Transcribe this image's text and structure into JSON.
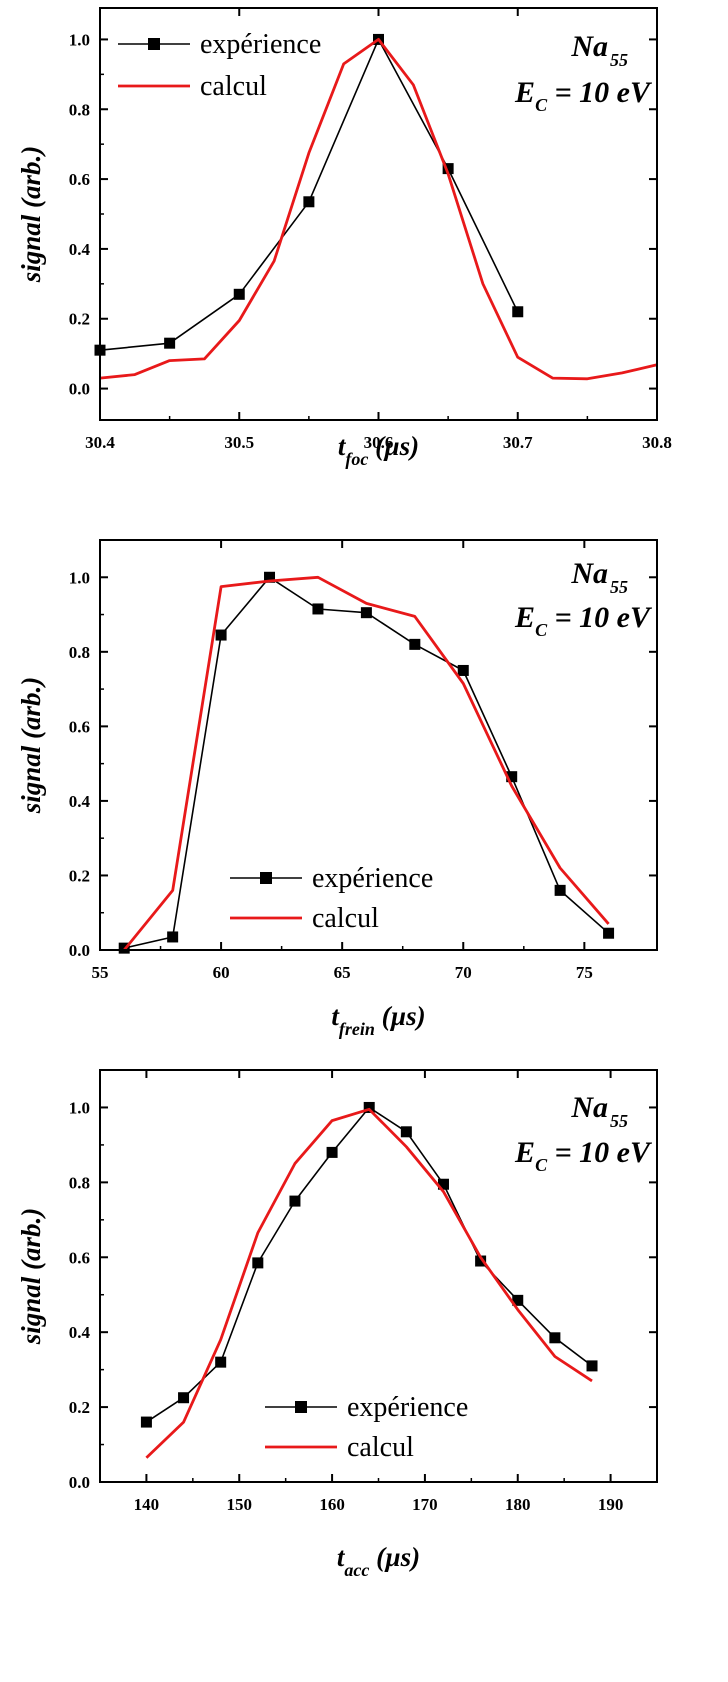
{
  "chart_data": [
    {
      "type": "line",
      "annotation": {
        "line1": "Na",
        "line1_sub": "55",
        "line2": "E",
        "line2_sub": "C",
        "line2_rest": " = 10 eV"
      },
      "ylabel": "signal (arb.)",
      "xlabel": {
        "main": "t",
        "sub": "foc",
        "unit": " (µs)"
      },
      "xlim": [
        30.4,
        30.8
      ],
      "ylim": [
        -0.09,
        1.09
      ],
      "xticks": [
        30.4,
        30.5,
        30.6,
        30.7,
        30.8
      ],
      "xtick_labels": [
        "30.4",
        "30.5",
        "30.6",
        "30.7",
        "30.8"
      ],
      "yticks": [
        0.0,
        0.2,
        0.4,
        0.6,
        0.8,
        1.0
      ],
      "ytick_labels": [
        "0.0",
        "0.2",
        "0.4",
        "0.6",
        "0.8",
        "1.0"
      ],
      "legend": {
        "position": "top-left",
        "entries": [
          "expérience",
          "calcul"
        ]
      },
      "series": [
        {
          "name": "expérience",
          "color": "#000000",
          "marker": "square",
          "x": [
            30.4,
            30.45,
            30.5,
            30.55,
            30.6,
            30.65,
            30.7
          ],
          "y": [
            0.11,
            0.13,
            0.27,
            0.535,
            1.0,
            0.63,
            0.22
          ]
        },
        {
          "name": "calcul",
          "color": "#e8191a",
          "marker": "none",
          "x": [
            30.4,
            30.425,
            30.45,
            30.475,
            30.5,
            30.525,
            30.55,
            30.575,
            30.6,
            30.625,
            30.65,
            30.675,
            30.7,
            30.725,
            30.75,
            30.775,
            30.8
          ],
          "y": [
            0.03,
            0.04,
            0.08,
            0.085,
            0.195,
            0.365,
            0.675,
            0.93,
            1.0,
            0.87,
            0.615,
            0.3,
            0.09,
            0.03,
            0.028,
            0.045,
            0.068
          ]
        }
      ]
    },
    {
      "type": "line",
      "annotation": {
        "line1": "Na",
        "line1_sub": "55",
        "line2": "E",
        "line2_sub": "C",
        "line2_rest": " = 10 eV"
      },
      "ylabel": "signal (arb.)",
      "xlabel": {
        "main": "t",
        "sub": "frein",
        "unit": " (µs)"
      },
      "xlim": [
        55,
        78
      ],
      "ylim": [
        0,
        1.1
      ],
      "xticks": [
        55,
        60,
        65,
        70,
        75
      ],
      "xtick_labels": [
        "55",
        "60",
        "65",
        "70",
        "75"
      ],
      "yticks": [
        0.0,
        0.2,
        0.4,
        0.6,
        0.8,
        1.0
      ],
      "ytick_labels": [
        "0.0",
        "0.2",
        "0.4",
        "0.6",
        "0.8",
        "1.0"
      ],
      "legend": {
        "position": "bottom-center",
        "entries": [
          "expérience",
          "calcul"
        ]
      },
      "series": [
        {
          "name": "expérience",
          "color": "#000000",
          "marker": "square",
          "x": [
            56,
            58,
            60,
            62,
            64,
            66,
            68,
            70,
            72,
            74,
            76
          ],
          "y": [
            0.005,
            0.035,
            0.845,
            1.0,
            0.915,
            0.905,
            0.82,
            0.75,
            0.465,
            0.16,
            0.045
          ]
        },
        {
          "name": "calcul",
          "color": "#e8191a",
          "marker": "none",
          "x": [
            56,
            58,
            60,
            62,
            64,
            66,
            68,
            70,
            72,
            74,
            76
          ],
          "y": [
            0.0,
            0.16,
            0.975,
            0.99,
            1.0,
            0.93,
            0.895,
            0.715,
            0.44,
            0.22,
            0.07
          ]
        }
      ]
    },
    {
      "type": "line",
      "annotation": {
        "line1": "Na",
        "line1_sub": "55",
        "line2": "E",
        "line2_sub": "C",
        "line2_rest": " = 10 eV"
      },
      "ylabel": "signal (arb.)",
      "xlabel": {
        "main": "t",
        "sub": "acc",
        "unit": " (µs)"
      },
      "xlim": [
        135,
        195
      ],
      "ylim": [
        0,
        1.1
      ],
      "xticks": [
        140,
        150,
        160,
        170,
        180,
        190
      ],
      "xtick_labels": [
        "140",
        "150",
        "160",
        "170",
        "180",
        "190"
      ],
      "yticks": [
        0.0,
        0.2,
        0.4,
        0.6,
        0.8,
        1.0
      ],
      "ytick_labels": [
        "0.0",
        "0.2",
        "0.4",
        "0.6",
        "0.8",
        "1.0"
      ],
      "legend": {
        "position": "bottom-center",
        "entries": [
          "expérience",
          "calcul"
        ]
      },
      "series": [
        {
          "name": "expérience",
          "color": "#000000",
          "marker": "square",
          "x": [
            140,
            144,
            148,
            152,
            156,
            160,
            164,
            168,
            172,
            176,
            180,
            184,
            188
          ],
          "y": [
            0.16,
            0.225,
            0.32,
            0.585,
            0.75,
            0.88,
            1.0,
            0.935,
            0.795,
            0.59,
            0.485,
            0.385,
            0.31
          ]
        },
        {
          "name": "calcul",
          "color": "#e8191a",
          "marker": "none",
          "x": [
            140,
            144,
            148,
            152,
            156,
            160,
            164,
            168,
            172,
            176,
            180,
            184,
            188
          ],
          "y": [
            0.065,
            0.16,
            0.38,
            0.665,
            0.85,
            0.965,
            0.995,
            0.895,
            0.775,
            0.6,
            0.46,
            0.335,
            0.27
          ]
        }
      ]
    }
  ]
}
